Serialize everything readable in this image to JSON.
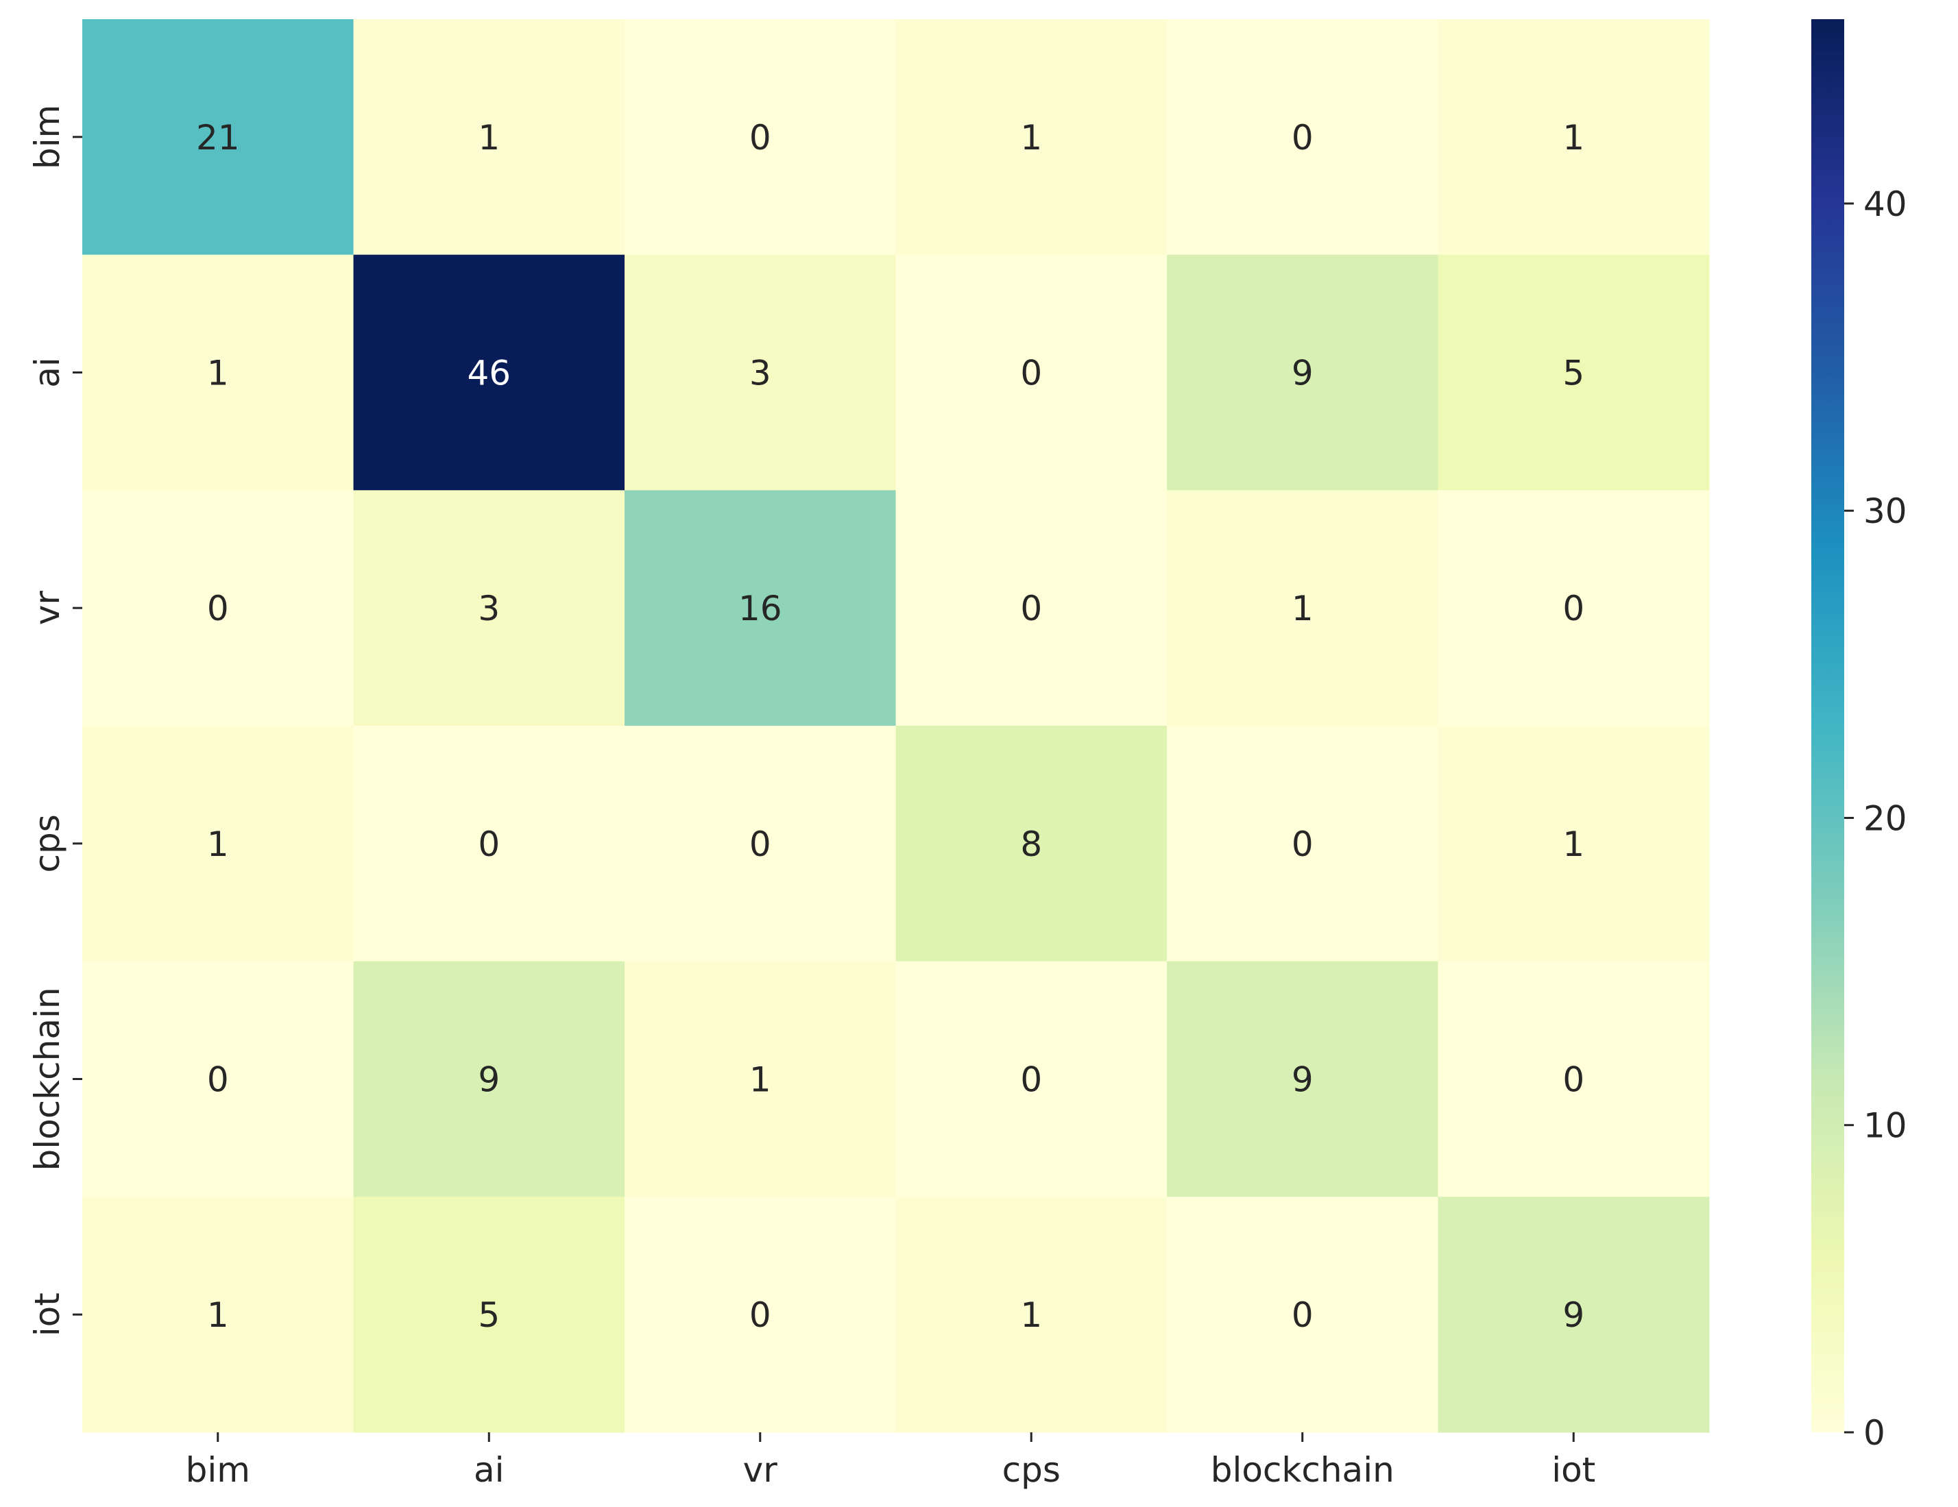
{
  "chart_data": {
    "type": "heatmap",
    "title": "",
    "xlabel": "",
    "ylabel": "",
    "x_categories": [
      "bim",
      "ai",
      "vr",
      "cps",
      "blockchain",
      "iot"
    ],
    "y_categories": [
      "bim",
      "ai",
      "vr",
      "cps",
      "blockchain",
      "iot"
    ],
    "values": [
      [
        21,
        1,
        0,
        1,
        0,
        1
      ],
      [
        1,
        46,
        3,
        0,
        9,
        5
      ],
      [
        0,
        3,
        16,
        0,
        1,
        0
      ],
      [
        1,
        0,
        0,
        8,
        0,
        1
      ],
      [
        0,
        9,
        1,
        0,
        9,
        0
      ],
      [
        1,
        5,
        0,
        1,
        0,
        9
      ]
    ],
    "annotations": true,
    "colormap": "YlGnBu",
    "colorbar": {
      "vmin": 0,
      "vmax": 46,
      "ticks": [
        0,
        10,
        20,
        30,
        40
      ],
      "tick_labels": [
        "0",
        "10",
        "20",
        "30",
        "40"
      ]
    },
    "grid": false
  },
  "colors": {
    "colormap_stops": [
      "#ffffd9",
      "#edf8b1",
      "#c7e9b4",
      "#7fcdbb",
      "#41b6c4",
      "#1d91c0",
      "#225ea8",
      "#253494",
      "#081d58"
    ],
    "annotation_dark_text": "#262626",
    "annotation_light_text": "#ffffff",
    "tick_color": "#262626"
  }
}
